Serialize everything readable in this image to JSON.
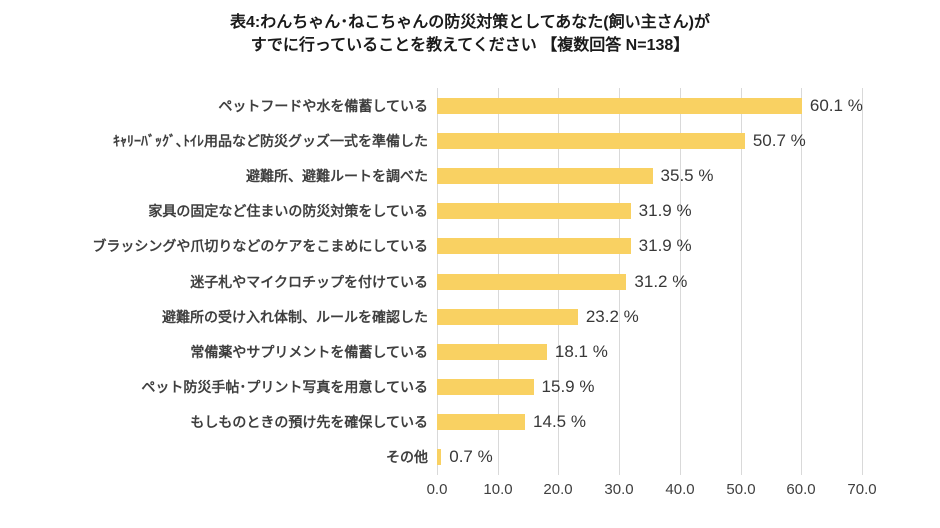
{
  "title": {
    "line1": "表4:わんちゃん･ねこちゃんの防災対策としてあなた(飼い主さん)が",
    "line2": "すでに行っていることを教えてください 【複数回答 N=138】"
  },
  "chart_data": {
    "type": "bar",
    "orientation": "horizontal",
    "title": "表4:わんちゃん･ねこちゃんの防災対策としてあなた(飼い主さん)が すでに行っていることを教えてください 【複数回答 N=138】",
    "categories": [
      "ペットフードや水を備蓄している",
      "ｷｬﾘｰﾊﾞｯｸﾞ､ﾄｲﾚ用品など防災グッズ一式を準備した",
      "避難所、避難ルートを調べた",
      "家具の固定など住まいの防災対策をしている",
      "ブラッシングや爪切りなどのケアをこまめにしている",
      "迷子札やマイクロチップを付けている",
      "避難所の受け入れ体制、ルールを確認した",
      "常備薬やサプリメントを備蓄している",
      "ペット防災手帖･プリント写真を用意している",
      "もしものときの預け先を確保している",
      "その他"
    ],
    "values": [
      60.1,
      50.7,
      35.5,
      31.9,
      31.9,
      31.2,
      23.2,
      18.1,
      15.9,
      14.5,
      0.7
    ],
    "value_labels": [
      "60.1 %",
      "50.7 %",
      "35.5 %",
      "31.9 %",
      "31.9 %",
      "31.2 %",
      "23.2 %",
      "18.1 %",
      "15.9 %",
      "14.5 %",
      "0.7 %"
    ],
    "xlabel": "",
    "ylabel": "",
    "xlim": [
      0,
      70
    ],
    "x_ticks": [
      "0.0",
      "10.0",
      "20.0",
      "30.0",
      "40.0",
      "50.0",
      "60.0",
      "70.0"
    ],
    "grid": true,
    "legend": false,
    "bar_color": "#F9D162",
    "gridline_color": "#D9D9D9"
  }
}
